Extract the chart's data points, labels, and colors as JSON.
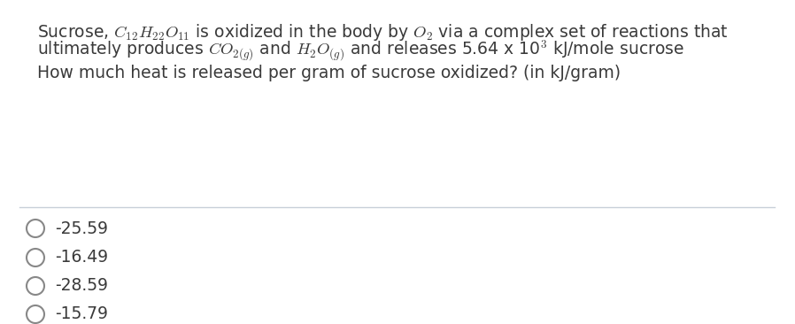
{
  "background_color": "#ffffff",
  "question_box_bg": "#ffffff",
  "question_box_border_color": "#c8d0d8",
  "text_color": "#3a3a3a",
  "choices_color": "#555555",
  "font_size_question": 13.5,
  "font_size_choices": 13.5,
  "line1": "Sucrose, $C_{12}H_{22}O_{11}$ is oxidized in the body by $O_2$ via a complex set of reactions that",
  "line2": "ultimately produces $CO_{2(g)}$ and $H_2O_{(g)}$ and releases 5.64 x 10$^3$ kJ/mole sucrose",
  "line3": "How much heat is released per gram of sucrose oxidized? (in kJ/gram)",
  "choices": [
    "-25.59",
    "-16.49",
    "-28.59",
    "-15.79"
  ],
  "circle_color": "#888888",
  "circle_linewidth": 1.5
}
